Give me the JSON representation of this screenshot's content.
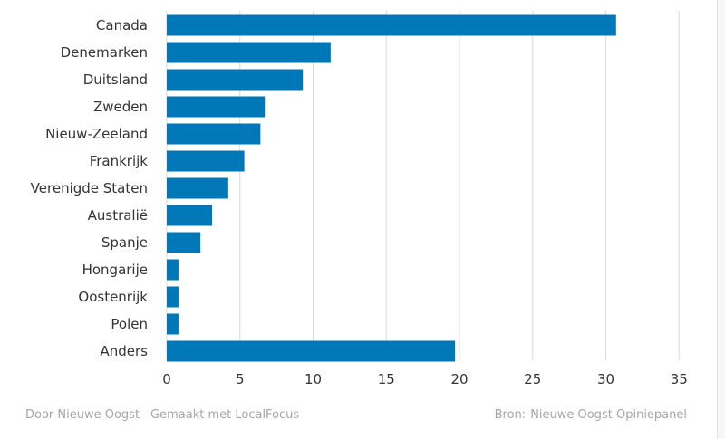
{
  "chart_data": {
    "type": "bar",
    "orientation": "horizontal",
    "categories": [
      "Canada",
      "Denemarken",
      "Duitsland",
      "Zweden",
      "Nieuw-Zeeland",
      "Frankrijk",
      "Verenigde Staten",
      "Australië",
      "Spanje",
      "Hongarije",
      "Oostenrijk",
      "Polen",
      "Anders"
    ],
    "values": [
      30.7,
      11.2,
      9.3,
      6.7,
      6.4,
      5.3,
      4.2,
      3.1,
      2.3,
      0.8,
      0.8,
      0.8,
      19.7
    ],
    "xlim": [
      0,
      35
    ],
    "xticks": [
      0,
      5,
      10,
      15,
      20,
      25,
      30,
      35
    ],
    "grid": true,
    "bar_color": "#0077b6"
  },
  "footer": {
    "author": "Door Nieuwe Oogst",
    "made_with": "Gemaakt met LocalFocus",
    "source_label": "Bron:",
    "source_value": "Nieuwe Oogst Opiniepanel"
  }
}
